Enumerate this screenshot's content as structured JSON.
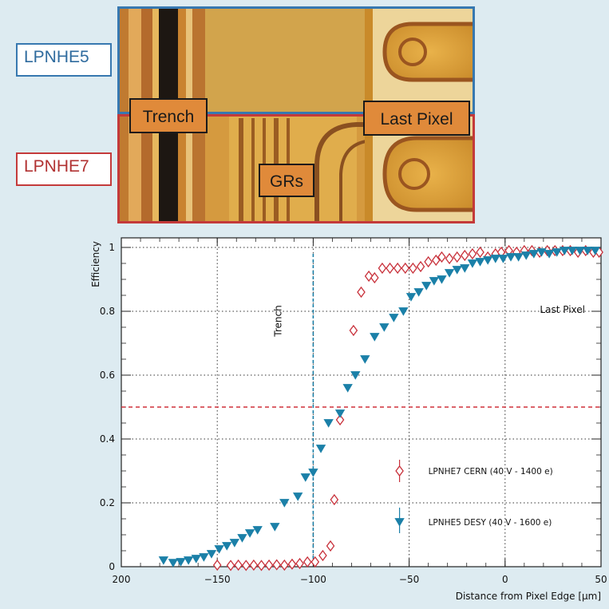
{
  "photo": {
    "top_label": "LPNHE5",
    "bottom_label": "LPNHE7",
    "tags": {
      "trench": "Trench",
      "last_pixel": "Last Pixel",
      "grs": "GRs"
    },
    "colors": {
      "top_frame": "#3778b0",
      "bottom_frame": "#c43a3a"
    }
  },
  "chart_data": {
    "type": "scatter",
    "xlabel": "Distance from Pixel Edge [μm]",
    "ylabel": "Efficiency",
    "xlim": [
      -200,
      50
    ],
    "ylim": [
      0,
      1.03
    ],
    "x_axis_reversed_sign_label": true,
    "x_ticks": [
      -200,
      -150,
      -100,
      -50,
      0,
      50
    ],
    "x_tick_labels": [
      "200",
      "−150",
      "−100",
      "−50",
      "0",
      "50"
    ],
    "y_ticks": [
      0,
      0.2,
      0.4,
      0.6,
      0.8,
      1
    ],
    "y_tick_labels": [
      "0",
      "0.2",
      "0.4",
      "0.6",
      "0.8",
      "1"
    ],
    "grid": "dotted",
    "annotations": {
      "trench": {
        "text": "Trench",
        "x": -100
      },
      "last_pixel": {
        "text": "Last Pixel"
      },
      "half_efficiency_line": 0.5
    },
    "legend_placement": "center-right",
    "series": [
      {
        "name": "LPNHE7 CERN (40 V - 1400 e)",
        "marker": "diamond-open",
        "color": "#c8303a",
        "x": [
          -150,
          -143,
          -139,
          -135,
          -131,
          -127,
          -123,
          -119,
          -115,
          -111,
          -107,
          -103,
          -99,
          -95,
          -91,
          -89,
          -86,
          -79,
          -75,
          -71,
          -68,
          -64,
          -60,
          -56,
          -52,
          -48,
          -44,
          -40,
          -36,
          -33,
          -29,
          -25,
          -21,
          -17,
          -13,
          -9,
          -5,
          -2,
          2,
          6,
          10,
          14,
          18,
          22,
          26,
          30,
          34,
          38,
          42,
          46,
          49
        ],
        "y": [
          0.005,
          0.004,
          0.005,
          0.004,
          0.005,
          0.004,
          0.005,
          0.006,
          0.005,
          0.008,
          0.01,
          0.015,
          0.015,
          0.035,
          0.065,
          0.21,
          0.46,
          0.74,
          0.86,
          0.91,
          0.905,
          0.935,
          0.935,
          0.935,
          0.935,
          0.935,
          0.94,
          0.955,
          0.96,
          0.97,
          0.965,
          0.97,
          0.975,
          0.98,
          0.985,
          0.97,
          0.98,
          0.985,
          0.99,
          0.985,
          0.99,
          0.99,
          0.985,
          0.99,
          0.99,
          0.99,
          0.99,
          0.985,
          0.99,
          0.985,
          0.985
        ]
      },
      {
        "name": "LPNHE5 DESY (40 V - 1600 e)",
        "marker": "triangle-down-filled",
        "color": "#1b80a8",
        "x": [
          -178,
          -173,
          -169,
          -165,
          -161,
          -157,
          -153,
          -149,
          -145,
          -141,
          -137,
          -133,
          -129,
          -120,
          -115,
          -108,
          -104,
          -100,
          -96,
          -92,
          -86,
          -82,
          -78,
          -73,
          -68,
          -63,
          -58,
          -53,
          -49,
          -45,
          -41,
          -37,
          -33,
          -29,
          -25,
          -21,
          -17,
          -13,
          -9,
          -5,
          -1,
          3,
          7,
          11,
          15,
          19,
          23,
          27,
          31,
          35,
          39,
          43,
          47
        ],
        "y": [
          0.02,
          0.012,
          0.015,
          0.02,
          0.025,
          0.03,
          0.04,
          0.055,
          0.065,
          0.075,
          0.09,
          0.105,
          0.115,
          0.125,
          0.2,
          0.22,
          0.28,
          0.295,
          0.37,
          0.45,
          0.48,
          0.56,
          0.6,
          0.65,
          0.72,
          0.75,
          0.78,
          0.8,
          0.845,
          0.86,
          0.88,
          0.895,
          0.9,
          0.92,
          0.93,
          0.935,
          0.95,
          0.955,
          0.96,
          0.965,
          0.965,
          0.97,
          0.97,
          0.975,
          0.98,
          0.985,
          0.98,
          0.985,
          0.99,
          0.99,
          0.99,
          0.99,
          0.99
        ]
      }
    ]
  }
}
